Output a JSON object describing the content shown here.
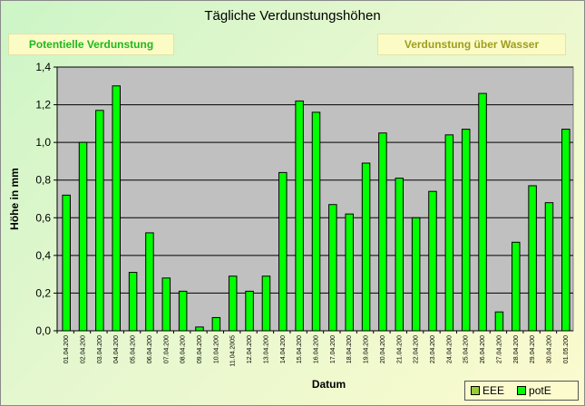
{
  "chart_data": {
    "type": "bar",
    "title": "Tägliche Verdunstungshöhen",
    "ylabel": "Höhe in mm",
    "xlabel": "Datum",
    "ylim": [
      0,
      1.4
    ],
    "yticks": [
      "0,0",
      "0,2",
      "0,4",
      "0,6",
      "0,8",
      "1,0",
      "1,2",
      "1,4"
    ],
    "grid": true,
    "legend_position": "bottom-right",
    "categories": [
      "01.04.200",
      "02.04.200",
      "03.04.200",
      "04.04.200",
      "05.04.200",
      "06.04.200",
      "07.04.200",
      "08.04.200",
      "09.04.200",
      "10.04.200",
      "11.04.2005",
      "12.04.200",
      "13.04.200",
      "14.04.200",
      "15.04.200",
      "16.04.200",
      "17.04.200",
      "18.04.200",
      "19.04.200",
      "20.04.200",
      "21.04.200",
      "22.04.200",
      "23.04.200",
      "24.04.200",
      "25.04.200",
      "26.04.200",
      "27.04.200",
      "28.04.200",
      "29.04.200",
      "30.04.200",
      "01.05.200"
    ],
    "series": [
      {
        "name": "EEE",
        "color": "#99cc33",
        "values": [
          0,
          0,
          0,
          0,
          0,
          0,
          0,
          0,
          0,
          0,
          0,
          0,
          0,
          0,
          0,
          0,
          0,
          0,
          0,
          0,
          0,
          0,
          0,
          0,
          0,
          0,
          0,
          0,
          0,
          0,
          0
        ]
      },
      {
        "name": "potE",
        "color": "#00ff00",
        "values": [
          0.72,
          1.0,
          1.17,
          1.3,
          0.31,
          0.52,
          0.28,
          0.21,
          0.02,
          0.07,
          0.29,
          0.21,
          0.29,
          0.84,
          1.22,
          1.16,
          0.67,
          0.62,
          0.89,
          1.05,
          0.81,
          0.6,
          0.74,
          1.04,
          1.07,
          1.26,
          0.1,
          0.47,
          0.77,
          0.68,
          1.07
        ]
      }
    ]
  },
  "boxes": {
    "left": "Potentielle Verdunstung",
    "right": "Verdunstung über Wasser"
  },
  "legend": [
    {
      "label": "EEE",
      "color": "#99cc33"
    },
    {
      "label": "potE",
      "color": "#00ff00"
    }
  ]
}
